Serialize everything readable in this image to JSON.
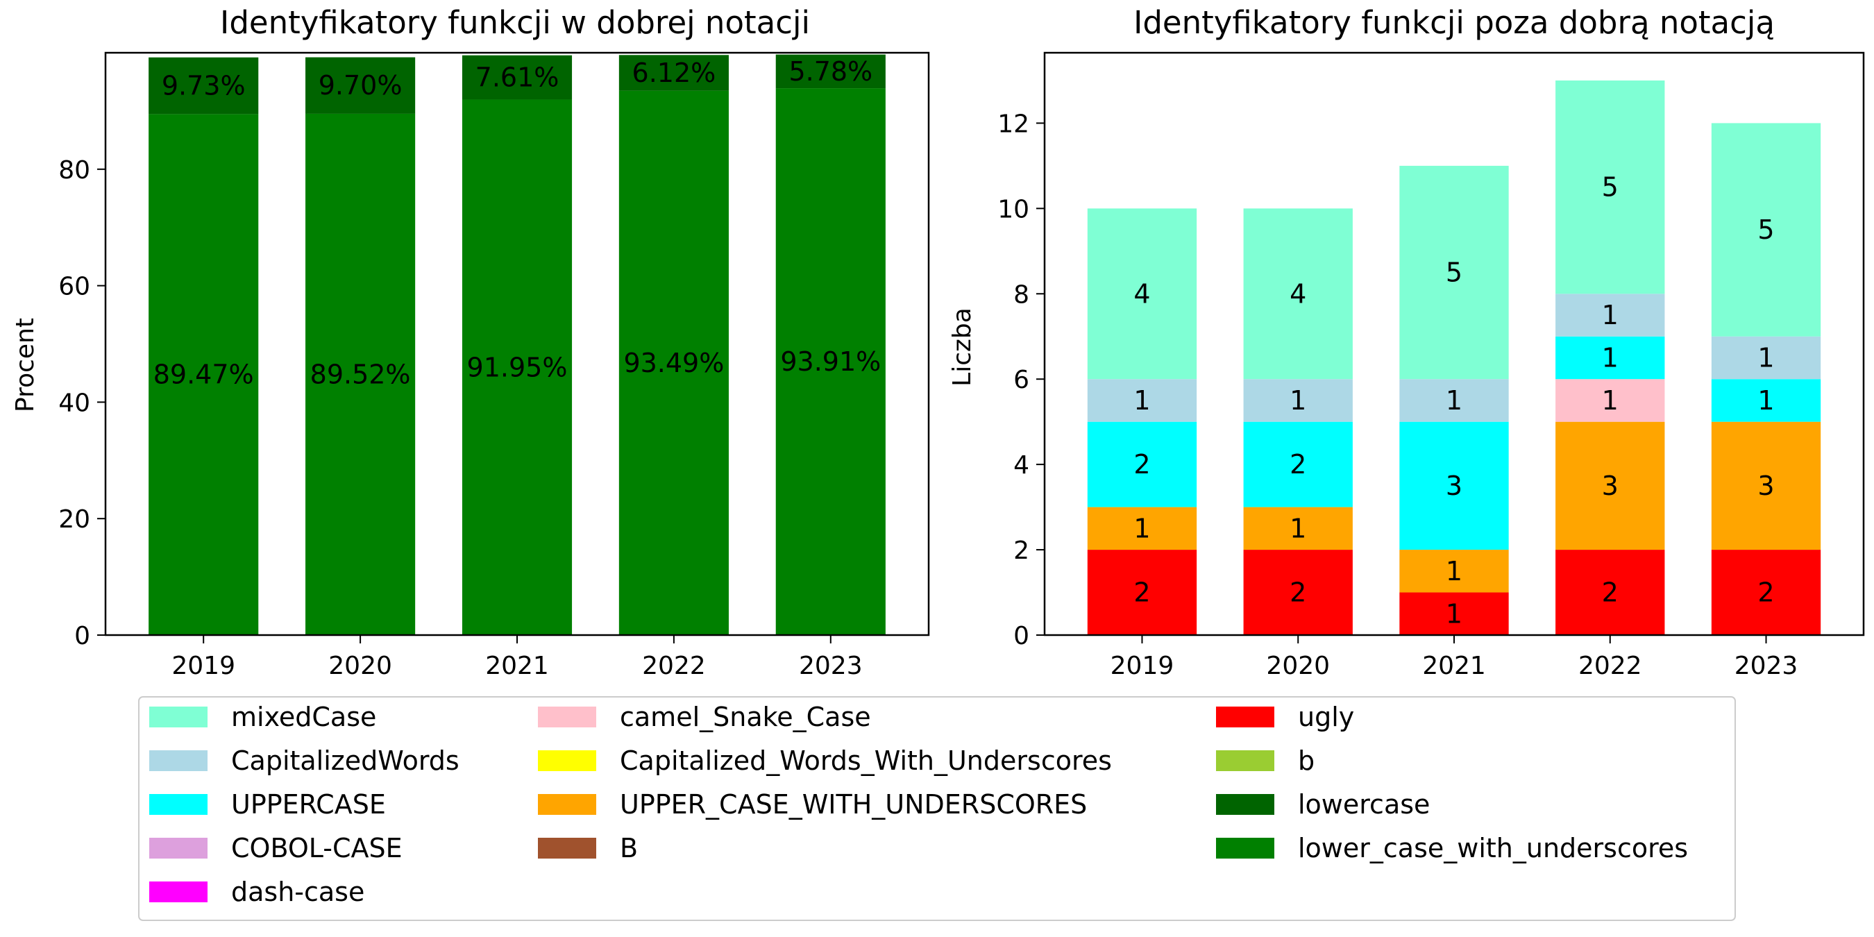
{
  "chart_data": [
    {
      "type": "bar",
      "stacked": true,
      "title": "Identyfikatory funkcji w dobrej notacji",
      "xlabel": "",
      "ylabel": "Procent",
      "categories": [
        "2019",
        "2020",
        "2021",
        "2022",
        "2023"
      ],
      "ylim": [
        0,
        100
      ],
      "yticks": [
        "0",
        "20",
        "40",
        "60",
        "80"
      ],
      "grid": false,
      "series": [
        {
          "name": "lower_case_with_underscores",
          "color": "#008000",
          "values": [
            89.47,
            89.52,
            91.95,
            93.49,
            93.91
          ],
          "labels": [
            "89.47%",
            "89.52%",
            "91.95%",
            "93.49%",
            "93.91%"
          ]
        },
        {
          "name": "lowercase",
          "color": "#006400",
          "values": [
            9.73,
            9.7,
            7.61,
            6.12,
            5.78
          ],
          "labels": [
            "9.73%",
            "9.70%",
            "7.61%",
            "6.12%",
            "5.78%"
          ]
        }
      ]
    },
    {
      "type": "bar",
      "stacked": true,
      "title": "Identyfikatory funkcji poza dobrą notacją",
      "xlabel": "",
      "ylabel": "Liczba",
      "categories": [
        "2019",
        "2020",
        "2021",
        "2022",
        "2023"
      ],
      "ylim": [
        0,
        13.65
      ],
      "yticks": [
        "0",
        "2",
        "4",
        "6",
        "8",
        "10",
        "12"
      ],
      "grid": false,
      "series": [
        {
          "name": "ugly",
          "color": "#ff0000",
          "values": [
            2,
            2,
            1,
            2,
            2
          ],
          "labels": [
            "2",
            "2",
            "1",
            "2",
            "2"
          ]
        },
        {
          "name": "UPPER_CASE_WITH_UNDERSCORES",
          "color": "#ffa500",
          "values": [
            1,
            1,
            1,
            3,
            3
          ],
          "labels": [
            "1",
            "1",
            "1",
            "3",
            "3"
          ]
        },
        {
          "name": "camel_Snake_Case",
          "color": "#ffc0cb",
          "values": [
            0,
            0,
            0,
            1,
            0
          ],
          "labels": [
            "",
            "",
            "",
            "1",
            ""
          ]
        },
        {
          "name": "UPPERCASE",
          "color": "#00ffff",
          "values": [
            2,
            2,
            3,
            1,
            1
          ],
          "labels": [
            "2",
            "2",
            "3",
            "1",
            "1"
          ]
        },
        {
          "name": "CapitalizedWords",
          "color": "#add8e6",
          "values": [
            1,
            1,
            1,
            1,
            1
          ],
          "labels": [
            "1",
            "1",
            "1",
            "1",
            "1"
          ]
        },
        {
          "name": "mixedCase",
          "color": "#7fffd4",
          "values": [
            4,
            4,
            5,
            5,
            5
          ],
          "labels": [
            "4",
            "4",
            "5",
            "5",
            "5"
          ]
        }
      ]
    }
  ],
  "legend": {
    "placement": "bottom",
    "columns": [
      [
        {
          "label": "mixedCase",
          "color": "#7fffd4"
        },
        {
          "label": "CapitalizedWords",
          "color": "#add8e6"
        },
        {
          "label": "UPPERCASE",
          "color": "#00ffff"
        },
        {
          "label": "COBOL-CASE",
          "color": "#dda0dd"
        },
        {
          "label": "dash-case",
          "color": "#ff00ff"
        }
      ],
      [
        {
          "label": "camel_Snake_Case",
          "color": "#ffc0cb"
        },
        {
          "label": "Capitalized_Words_With_Underscores",
          "color": "#ffff00"
        },
        {
          "label": "UPPER_CASE_WITH_UNDERSCORES",
          "color": "#ffa500"
        },
        {
          "label": "B",
          "color": "#a0522d"
        }
      ],
      [
        {
          "label": "ugly",
          "color": "#ff0000"
        },
        {
          "label": "b",
          "color": "#9acd32"
        },
        {
          "label": "lowercase",
          "color": "#006400"
        },
        {
          "label": "lower_case_with_underscores",
          "color": "#008000"
        }
      ]
    ]
  }
}
